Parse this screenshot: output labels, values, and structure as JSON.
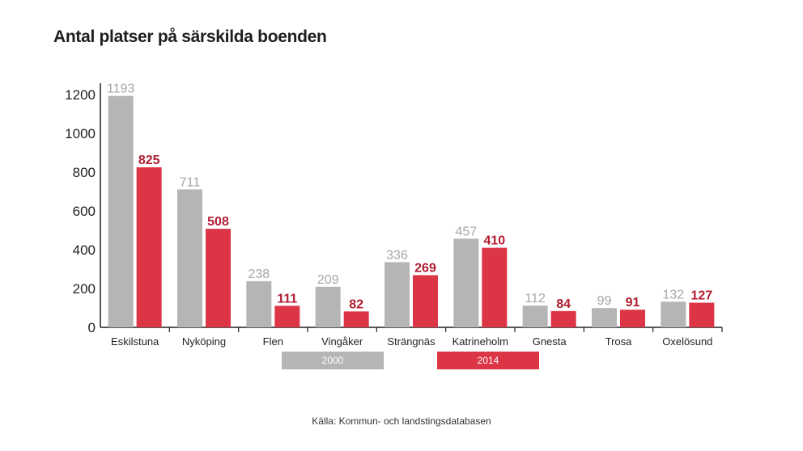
{
  "title": "Antal platser på särskilda boenden",
  "source": "Källa:  Kommun- och landstingsdatabasen",
  "colors": {
    "series_2000": "#b5b5b5",
    "series_2014": "#dc3545",
    "label_2000": "#a6a6a6",
    "label_2014": "#b01c30",
    "axis": "#222222"
  },
  "chart_data": {
    "type": "bar",
    "title": "Antal platser på särskilda boenden",
    "categories": [
      "Eskilstuna",
      "Nyköping",
      "Flen",
      "Vingåker",
      "Strängnäs",
      "Katrineholm",
      "Gnesta",
      "Trosa",
      "Oxelösund"
    ],
    "series": [
      {
        "name": "2000",
        "values": [
          1193,
          711,
          238,
          209,
          336,
          457,
          112,
          99,
          132
        ]
      },
      {
        "name": "2014",
        "values": [
          825,
          508,
          111,
          82,
          269,
          410,
          84,
          91,
          127
        ]
      }
    ],
    "yticks": [
      0,
      200,
      400,
      600,
      800,
      1000,
      1200
    ],
    "ylim": [
      0,
      1200
    ],
    "xlabel": "",
    "ylabel": "",
    "grid": false,
    "legend": "bottom"
  }
}
